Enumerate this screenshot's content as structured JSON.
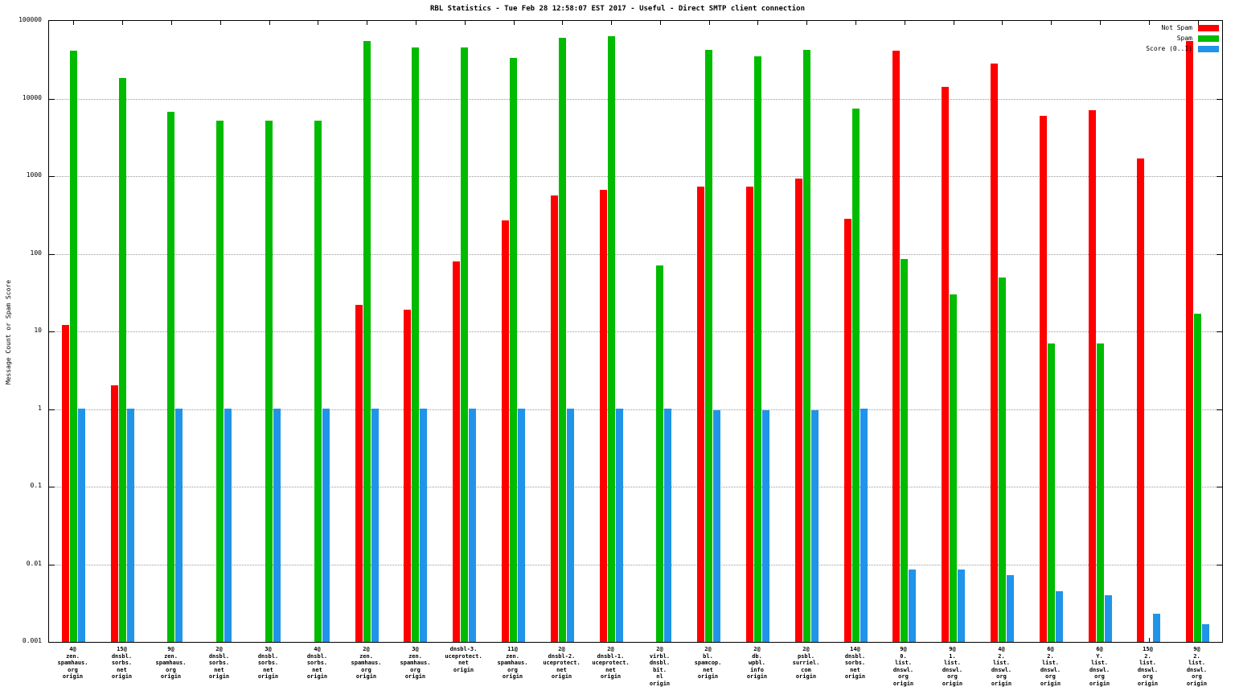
{
  "title": "RBL Statistics - Tue Feb 28 12:58:07 EST 2017 - Useful - Direct SMTP client connection",
  "chart_data": {
    "type": "bar",
    "yscale": "log",
    "title": "RBL Statistics - Tue Feb 28 12:58:07 EST 2017 - Useful - Direct SMTP client connection",
    "xlabel": "",
    "ylabel": "Message Count or Spam Score",
    "ylim": [
      0.001,
      100000
    ],
    "yticks": [
      "0.001",
      "0.01",
      "0.1",
      "1",
      "10",
      "100",
      "1000",
      "10000",
      "100000"
    ],
    "grid": true,
    "legend_position": "top-right",
    "categories": [
      "4@\nzen.\nspamhaus.\norg\norigin",
      "15@\ndnsbl.\nsorbs.\nnet\norigin",
      "9@\nzen.\nspamhaus.\norg\norigin",
      "2@\ndnsbl.\nsorbs.\nnet\norigin",
      "3@\ndnsbl.\nsorbs.\nnet\norigin",
      "4@\ndnsbl.\nsorbs.\nnet\norigin",
      "2@\nzen.\nspamhaus.\norg\norigin",
      "3@\nzen.\nspamhaus.\norg\norigin",
      "dnsbl-3.\nuceprotect.\nnet\norigin",
      "11@\nzen.\nspamhaus.\norg\norigin",
      "2@\ndnsbl-2.\nuceprotect.\nnet\norigin",
      "2@\ndnsbl-1.\nuceprotect.\nnet\norigin",
      "2@\nvirbl.\ndnsbl.\nbit.\nnl\norigin",
      "2@\nbl.\nspamcop.\nnet\norigin",
      "2@\ndb.\nwpbl.\ninfo\norigin",
      "2@\npsbl.\nsurriel.\ncom\norigin",
      "14@\ndnsbl.\nsorbs.\nnet\norigin",
      "9@\n0.\nlist.\ndnswl.\norg\norigin",
      "9@\n1.\nlist.\ndnswl.\norg\norigin",
      "4@\n2.\nlist.\ndnswl.\norg\norigin",
      "6@\n2.\nlist.\ndnswl.\norg\norigin",
      "6@\nY.\nlist.\ndnswl.\norg\norigin",
      "15@\n2.\nlist.\ndnswl.\norg\norigin",
      "9@\n2.\nlist.\ndnswl.\norg\norigin"
    ],
    "series": [
      {
        "name": "Not Spam",
        "color": "#ff0000",
        "values": [
          12,
          2,
          null,
          null,
          null,
          null,
          22,
          19,
          79,
          270,
          560,
          660,
          null,
          740,
          730,
          920,
          280,
          41000,
          14000,
          28000,
          6000,
          7000,
          1700,
          55000
        ]
      },
      {
        "name": "Spam",
        "color": "#00bb00",
        "values": [
          41000,
          18500,
          6800,
          5200,
          5200,
          5200,
          55000,
          46000,
          45000,
          33000,
          60000,
          63000,
          70,
          42000,
          35000,
          42000,
          7500,
          85,
          30,
          50,
          7,
          7,
          null,
          17
        ]
      },
      {
        "name": "Score (0..1)",
        "color": "#2094e8",
        "values": [
          1,
          1,
          1,
          1,
          1,
          1,
          1,
          1,
          1,
          1,
          1,
          1,
          1,
          0.97,
          0.97,
          0.97,
          1,
          0.0085,
          0.0085,
          0.0072,
          0.0045,
          0.004,
          0.0023,
          0.0017
        ]
      }
    ]
  }
}
